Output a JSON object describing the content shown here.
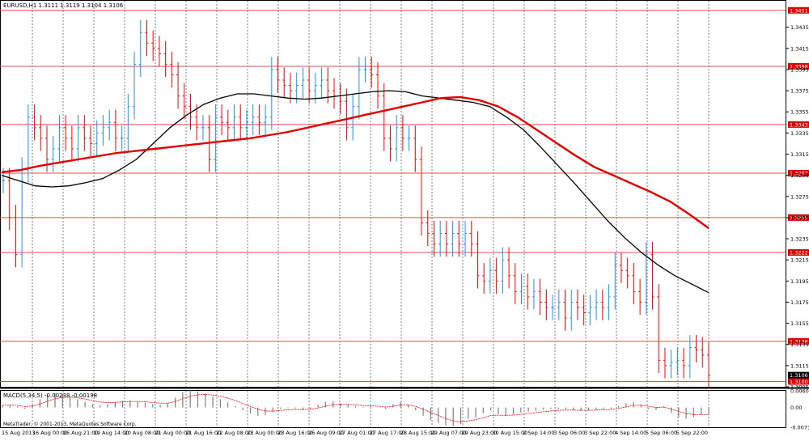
{
  "window": {
    "symbol_line": "EURUSD,H1  1.3111 1.3119 1.3104 1.3106",
    "macd_line": "MACD(5,34,5) -0.00238 -0.00198",
    "copyright": "MetaTrader, © 2001-2013, MetaQuotes Software Corp."
  },
  "colors": {
    "background": "#ffffff",
    "grid": "#7f7f7f",
    "price_bar": "#1e90ff",
    "bear_bar": "#ff0000",
    "ma_fast": "#000000",
    "ma_slow": "#e00000",
    "hline": "#e05050",
    "label_bg": "#e00000",
    "macd_hist": "#7f7f7f",
    "macd_signal": "#ff0000"
  },
  "chart_data": [
    {
      "type": "candlestick",
      "title": "EURUSD,H1",
      "ohlc_current": {
        "open": 1.3111,
        "high": 1.3119,
        "low": 1.3104,
        "close": 1.3106
      },
      "ylim": [
        1.3095,
        1.346
      ],
      "y_ticks": [
        "1.3435",
        "1.3415",
        "1.3395",
        "1.3375",
        "1.3355",
        "1.3335",
        "1.3315",
        "1.3295",
        "1.3275",
        "1.3255",
        "1.3235",
        "1.3215",
        "1.3195",
        "1.3175",
        "1.3155",
        "1.3135",
        "1.3115",
        "1.3095"
      ],
      "x_labels": [
        "15 Aug 2013",
        "16 Aug 00:00",
        "16 Aug 21:00",
        "19 Aug 14:00",
        "20 Aug 08:00",
        "21 Aug 00:00",
        "21 Aug 16:00",
        "22 Aug 08:00",
        "23 Aug 00:00",
        "23 Aug 16:00",
        "26 Aug 09:00",
        "27 Aug 01:00",
        "27 Aug 17:00",
        "28 Aug 15:00",
        "29 Aug 07:00",
        "29 Aug 23:00",
        "30 Aug 15:00",
        "2 Sep 14:00",
        "3 Sep 06:00",
        "3 Sep 22:00",
        "4 Sep 14:00",
        "5 Sep 06:00",
        "5 Sep 22:00"
      ],
      "horizontal_levels": [
        "1.3451",
        "1.3398",
        "1.3343",
        "1.3297",
        "1.3255",
        "1.3222",
        "1.3138",
        "1.3100"
      ],
      "current_price": "1.3106",
      "close_series": [
        1.329,
        1.3255,
        1.322,
        1.33,
        1.335,
        1.334,
        1.333,
        1.331,
        1.332,
        1.334,
        1.333,
        1.332,
        1.334,
        1.333,
        1.3325,
        1.3335,
        1.334,
        1.3345,
        1.333,
        1.333,
        1.336,
        1.34,
        1.343,
        1.342,
        1.3415,
        1.341,
        1.34,
        1.339,
        1.337,
        1.336,
        1.335,
        1.334,
        1.334,
        1.331,
        1.335,
        1.3345,
        1.334,
        1.335,
        1.334,
        1.3345,
        1.335,
        1.3345,
        1.335,
        1.3395,
        1.3385,
        1.338,
        1.3375,
        1.338,
        1.3385,
        1.3375,
        1.338,
        1.3385,
        1.3375,
        1.337,
        1.3365,
        1.334,
        1.336,
        1.3395,
        1.3395,
        1.339,
        1.337,
        1.333,
        1.332,
        1.334,
        1.333,
        1.333,
        1.331,
        1.325,
        1.324,
        1.323,
        1.324,
        1.323,
        1.324,
        1.323,
        1.324,
        1.323,
        1.32,
        1.3195,
        1.3205,
        1.3195,
        1.3215,
        1.32,
        1.3185,
        1.319,
        1.318,
        1.3185,
        1.3175,
        1.317,
        1.317,
        1.3175,
        1.316,
        1.3175,
        1.317,
        1.3165,
        1.317,
        1.3175,
        1.317,
        1.318,
        1.321,
        1.3205,
        1.32,
        1.3185,
        1.3175,
        1.322,
        1.318,
        1.312,
        1.3115,
        1.3118,
        1.312,
        1.3115,
        1.3132,
        1.313,
        1.3125,
        1.3106
      ],
      "series": [
        {
          "values": [
            1.3295,
            1.329,
            1.3285,
            1.3284,
            1.3285,
            1.3288,
            1.3292,
            1.33,
            1.331,
            1.3325,
            1.334,
            1.3352,
            1.3362,
            1.3368,
            1.3372,
            1.3372,
            1.337,
            1.3368,
            1.3367,
            1.3368,
            1.337,
            1.3372,
            1.3374,
            1.3375,
            1.3374,
            1.337,
            1.3368,
            1.3366,
            1.3364,
            1.336,
            1.335,
            1.3338,
            1.3322,
            1.3305,
            1.3288,
            1.327,
            1.3252,
            1.3236,
            1.3222,
            1.321,
            1.32,
            1.3192,
            1.3184
          ]
        },
        {
          "values": [
            1.3298,
            1.33,
            1.3304,
            1.3307,
            1.331,
            1.3313,
            1.3316,
            1.3318,
            1.332,
            1.3322,
            1.3324,
            1.3326,
            1.3328,
            1.333,
            1.3333,
            1.3336,
            1.334,
            1.3344,
            1.3348,
            1.3352,
            1.3356,
            1.336,
            1.3364,
            1.3368,
            1.3369,
            1.3366,
            1.336,
            1.335,
            1.3338,
            1.3326,
            1.3314,
            1.3303,
            1.3295,
            1.3287,
            1.3279,
            1.327,
            1.3258,
            1.3245
          ]
        }
      ]
    },
    {
      "type": "bar",
      "title": "MACD(5,34,5)",
      "values_current": {
        "main": -0.00238,
        "signal": -0.00198
      },
      "ylim": [
        -0.00713,
        0.00601
      ],
      "y_ticks": [
        "0.00601",
        "0.00",
        "-0.00713"
      ],
      "hist": [
        0.0008,
        0.001,
        0.0004,
        -0.0005,
        0.001,
        0.003,
        0.0045,
        0.0052,
        0.0048,
        0.004,
        0.003,
        0.002,
        0.0012,
        0.0008,
        0.0012,
        0.002,
        0.0024,
        0.0026,
        0.0022,
        0.0018,
        0.0012,
        0.001,
        0.0015,
        0.0035,
        0.0055,
        0.0062,
        0.0058,
        0.005,
        0.004,
        0.003,
        0.0018,
        0.0005,
        -0.001,
        -0.0022,
        -0.003,
        -0.0028,
        -0.0015,
        -0.0005,
        -0.0002,
        -0.0003,
        -0.001,
        -0.0005,
        0.001,
        0.002,
        0.0022,
        0.0015,
        0.001,
        0.0005,
        0.0002,
        0.0005,
        0.0,
        -0.0005,
        0.0012,
        0.002,
        0.001,
        -0.001,
        -0.003,
        -0.0045,
        -0.0055,
        -0.0065,
        -0.0068,
        -0.006,
        -0.004,
        -0.0035,
        -0.002,
        -0.001,
        -0.0025,
        -0.003,
        -0.0025,
        -0.0018,
        -0.0015,
        -0.0012,
        -0.0008,
        -0.0006,
        -0.0005,
        -0.0006,
        -0.001,
        -0.0012,
        -0.001,
        -0.0008,
        -0.0006,
        -0.0004,
        0.0005,
        0.0015,
        0.002,
        0.001,
        -0.0005,
        -0.001,
        0.0005,
        -0.002,
        -0.0035,
        -0.004,
        -0.0035,
        -0.0025,
        -0.0024
      ]
    }
  ]
}
